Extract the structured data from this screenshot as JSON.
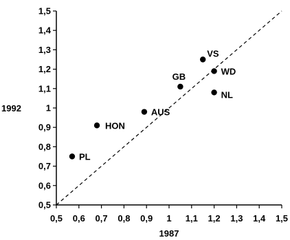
{
  "chart_data": {
    "type": "scatter",
    "title": "",
    "xlabel": "1987",
    "ylabel": "1992",
    "xlim": [
      0.5,
      1.5
    ],
    "ylim": [
      0.5,
      1.5
    ],
    "x_ticks": [
      "0,5",
      "0,6",
      "0,7",
      "0,8",
      "0,9",
      "1",
      "1,1",
      "1,2",
      "1,3",
      "1,4",
      "1,5"
    ],
    "y_ticks": [
      "0,5",
      "0,6",
      "0,7",
      "0,8",
      "0,9",
      "1",
      "1,1",
      "1,2",
      "1,3",
      "1,4",
      "1,5"
    ],
    "grid": false,
    "reference_line": {
      "style": "dashed",
      "from": [
        0.5,
        0.5
      ],
      "to": [
        1.5,
        1.5
      ]
    },
    "points": [
      {
        "label": "PL",
        "x": 0.57,
        "y": 0.75
      },
      {
        "label": "HON",
        "x": 0.68,
        "y": 0.91
      },
      {
        "label": "AUS",
        "x": 0.89,
        "y": 0.98
      },
      {
        "label": "GB",
        "x": 1.05,
        "y": 1.11
      },
      {
        "label": "VS",
        "x": 1.15,
        "y": 1.25
      },
      {
        "label": "WD",
        "x": 1.2,
        "y": 1.19
      },
      {
        "label": "NL",
        "x": 1.2,
        "y": 1.08
      }
    ]
  }
}
